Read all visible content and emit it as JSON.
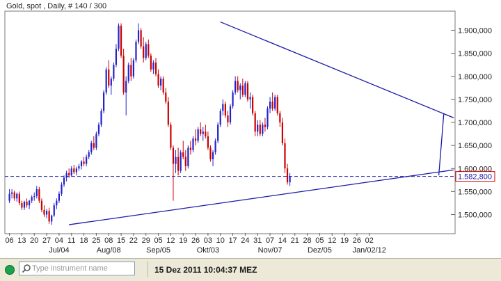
{
  "chart_data": {
    "type": "candlestick",
    "title": "Gold, spot , Daily, # 140 / 300",
    "ylim": [
      1460000,
      1940000
    ],
    "y_ticks": [
      "1.500,000",
      "1.550,000",
      "1.600,000",
      "1.650,000",
      "1.700,000",
      "1.750,000",
      "1.800,000",
      "1.850,000",
      "1.900,000"
    ],
    "y_tick_values": [
      1500000,
      1550000,
      1600000,
      1650000,
      1700000,
      1750000,
      1800000,
      1850000,
      1900000
    ],
    "x_day_labels": [
      "06",
      "13",
      "20",
      "27",
      "04",
      "11",
      "18",
      "25",
      "08",
      "15",
      "22",
      "29",
      "05",
      "12",
      "19",
      "26",
      "03",
      "10",
      "17",
      "24",
      "31",
      "07",
      "14",
      "21",
      "28",
      "05",
      "12",
      "19",
      "26",
      "02"
    ],
    "x_month_labels": [
      "Jul/04",
      "Aug/08",
      "Sep/05",
      "Okt/03",
      "Nov/07",
      "Dez/05",
      "Jan/02/12"
    ],
    "current_price": 1582800,
    "current_price_label": "1.582,800",
    "up_color": "#2222cc",
    "down_color": "#cc0000",
    "candles": [
      [
        1530000,
        1555000,
        1525000,
        1545000
      ],
      [
        1545000,
        1555000,
        1535000,
        1548000
      ],
      [
        1548000,
        1552000,
        1530000,
        1535000
      ],
      [
        1535000,
        1548000,
        1528000,
        1545000
      ],
      [
        1545000,
        1550000,
        1520000,
        1525000
      ],
      [
        1525000,
        1530000,
        1510000,
        1515000
      ],
      [
        1515000,
        1530000,
        1510000,
        1528000
      ],
      [
        1528000,
        1535000,
        1515000,
        1520000
      ],
      [
        1520000,
        1532000,
        1512000,
        1530000
      ],
      [
        1530000,
        1542000,
        1525000,
        1538000
      ],
      [
        1538000,
        1548000,
        1530000,
        1540000
      ],
      [
        1540000,
        1562000,
        1535000,
        1555000
      ],
      [
        1555000,
        1560000,
        1525000,
        1530000
      ],
      [
        1530000,
        1535000,
        1505000,
        1510000
      ],
      [
        1510000,
        1520000,
        1495000,
        1500000
      ],
      [
        1500000,
        1512000,
        1492000,
        1508000
      ],
      [
        1508000,
        1515000,
        1480000,
        1485000
      ],
      [
        1485000,
        1500000,
        1478000,
        1498000
      ],
      [
        1498000,
        1525000,
        1495000,
        1520000
      ],
      [
        1520000,
        1535000,
        1512000,
        1530000
      ],
      [
        1530000,
        1550000,
        1525000,
        1545000
      ],
      [
        1545000,
        1570000,
        1540000,
        1565000
      ],
      [
        1565000,
        1585000,
        1560000,
        1580000
      ],
      [
        1580000,
        1595000,
        1572000,
        1590000
      ],
      [
        1590000,
        1600000,
        1580000,
        1585000
      ],
      [
        1585000,
        1605000,
        1582000,
        1600000
      ],
      [
        1600000,
        1608000,
        1588000,
        1592000
      ],
      [
        1592000,
        1604000,
        1585000,
        1600000
      ],
      [
        1600000,
        1610000,
        1595000,
        1605000
      ],
      [
        1605000,
        1618000,
        1598000,
        1615000
      ],
      [
        1615000,
        1625000,
        1605000,
        1610000
      ],
      [
        1610000,
        1630000,
        1605000,
        1625000
      ],
      [
        1625000,
        1640000,
        1620000,
        1635000
      ],
      [
        1635000,
        1660000,
        1630000,
        1655000
      ],
      [
        1655000,
        1670000,
        1640000,
        1645000
      ],
      [
        1645000,
        1680000,
        1640000,
        1675000
      ],
      [
        1675000,
        1700000,
        1670000,
        1695000
      ],
      [
        1695000,
        1730000,
        1690000,
        1725000
      ],
      [
        1725000,
        1770000,
        1720000,
        1765000
      ],
      [
        1765000,
        1820000,
        1760000,
        1815000
      ],
      [
        1815000,
        1835000,
        1775000,
        1780000
      ],
      [
        1780000,
        1800000,
        1760000,
        1795000
      ],
      [
        1795000,
        1830000,
        1790000,
        1825000
      ],
      [
        1825000,
        1870000,
        1820000,
        1860000
      ],
      [
        1860000,
        1915000,
        1855000,
        1910000
      ],
      [
        1910000,
        1915000,
        1840000,
        1845000
      ],
      [
        1845000,
        1860000,
        1760000,
        1765000
      ],
      [
        1765000,
        1800000,
        1715000,
        1790000
      ],
      [
        1790000,
        1830000,
        1785000,
        1825000
      ],
      [
        1825000,
        1840000,
        1790000,
        1800000
      ],
      [
        1800000,
        1840000,
        1795000,
        1835000
      ],
      [
        1835000,
        1880000,
        1830000,
        1875000
      ],
      [
        1875000,
        1915000,
        1870000,
        1900000
      ],
      [
        1900000,
        1905000,
        1860000,
        1865000
      ],
      [
        1865000,
        1885000,
        1830000,
        1840000
      ],
      [
        1840000,
        1875000,
        1835000,
        1870000
      ],
      [
        1870000,
        1880000,
        1840000,
        1845000
      ],
      [
        1845000,
        1850000,
        1810000,
        1815000
      ],
      [
        1815000,
        1835000,
        1805000,
        1830000
      ],
      [
        1830000,
        1840000,
        1800000,
        1805000
      ],
      [
        1805000,
        1815000,
        1775000,
        1780000
      ],
      [
        1780000,
        1800000,
        1770000,
        1795000
      ],
      [
        1795000,
        1800000,
        1760000,
        1765000
      ],
      [
        1765000,
        1775000,
        1740000,
        1745000
      ],
      [
        1745000,
        1755000,
        1690000,
        1695000
      ],
      [
        1695000,
        1700000,
        1640000,
        1645000
      ],
      [
        1645000,
        1650000,
        1530000,
        1610000
      ],
      [
        1610000,
        1640000,
        1590000,
        1625000
      ],
      [
        1625000,
        1645000,
        1585000,
        1595000
      ],
      [
        1595000,
        1640000,
        1590000,
        1635000
      ],
      [
        1635000,
        1660000,
        1620000,
        1625000
      ],
      [
        1625000,
        1640000,
        1595000,
        1605000
      ],
      [
        1605000,
        1650000,
        1600000,
        1645000
      ],
      [
        1645000,
        1660000,
        1630000,
        1640000
      ],
      [
        1640000,
        1670000,
        1635000,
        1665000
      ],
      [
        1665000,
        1685000,
        1650000,
        1660000
      ],
      [
        1660000,
        1690000,
        1655000,
        1685000
      ],
      [
        1685000,
        1700000,
        1670000,
        1675000
      ],
      [
        1675000,
        1690000,
        1660000,
        1680000
      ],
      [
        1680000,
        1695000,
        1665000,
        1670000
      ],
      [
        1670000,
        1680000,
        1640000,
        1645000
      ],
      [
        1645000,
        1650000,
        1615000,
        1620000
      ],
      [
        1620000,
        1640000,
        1605000,
        1635000
      ],
      [
        1635000,
        1665000,
        1630000,
        1660000
      ],
      [
        1660000,
        1700000,
        1655000,
        1695000
      ],
      [
        1695000,
        1730000,
        1690000,
        1725000
      ],
      [
        1725000,
        1750000,
        1715000,
        1740000
      ],
      [
        1740000,
        1745000,
        1710000,
        1715000
      ],
      [
        1715000,
        1725000,
        1690000,
        1700000
      ],
      [
        1700000,
        1740000,
        1695000,
        1735000
      ],
      [
        1735000,
        1770000,
        1730000,
        1765000
      ],
      [
        1765000,
        1800000,
        1760000,
        1790000
      ],
      [
        1790000,
        1800000,
        1765000,
        1770000
      ],
      [
        1770000,
        1785000,
        1750000,
        1780000
      ],
      [
        1780000,
        1795000,
        1755000,
        1760000
      ],
      [
        1760000,
        1790000,
        1755000,
        1785000
      ],
      [
        1785000,
        1790000,
        1745000,
        1750000
      ],
      [
        1750000,
        1765000,
        1730000,
        1755000
      ],
      [
        1755000,
        1760000,
        1715000,
        1720000
      ],
      [
        1720000,
        1725000,
        1670000,
        1680000
      ],
      [
        1680000,
        1705000,
        1670000,
        1695000
      ],
      [
        1695000,
        1705000,
        1670000,
        1675000
      ],
      [
        1675000,
        1700000,
        1670000,
        1695000
      ],
      [
        1695000,
        1710000,
        1680000,
        1690000
      ],
      [
        1690000,
        1735000,
        1685000,
        1730000
      ],
      [
        1730000,
        1755000,
        1720000,
        1745000
      ],
      [
        1745000,
        1765000,
        1725000,
        1730000
      ],
      [
        1730000,
        1760000,
        1725000,
        1755000
      ],
      [
        1755000,
        1760000,
        1715000,
        1720000
      ],
      [
        1720000,
        1725000,
        1690000,
        1700000
      ],
      [
        1700000,
        1710000,
        1650000,
        1655000
      ],
      [
        1655000,
        1665000,
        1590000,
        1600000
      ],
      [
        1600000,
        1610000,
        1565000,
        1570000
      ],
      [
        1570000,
        1590000,
        1562000,
        1583000
      ]
    ],
    "trendlines": [
      {
        "from": [
          86,
          1918000
        ],
        "to": [
          180,
          1710000
        ],
        "color": "#1a1aa8"
      },
      {
        "from": [
          25,
          1478000
        ],
        "to": [
          180,
          1597000
        ],
        "color": "#1a1aa8"
      },
      {
        "from": [
          174,
          1585000
        ],
        "to": [
          176,
          1718000
        ],
        "color": "#1a1aa8"
      }
    ],
    "hline": {
      "value": 1582800,
      "color": "#1a1aa8",
      "style": "dashed"
    }
  },
  "statusbar": {
    "search_placeholder": "Type instrument name",
    "datetime": "15 Dez 2011 10:04:37 MEZ",
    "status_color": "#1aa34a"
  }
}
